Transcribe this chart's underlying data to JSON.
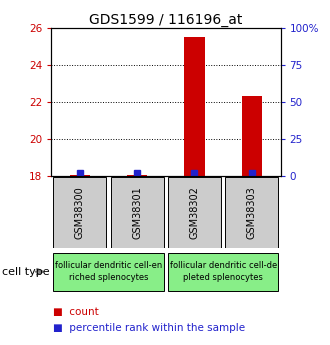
{
  "title": "GDS1599 / 116196_at",
  "samples": [
    "GSM38300",
    "GSM38301",
    "GSM38302",
    "GSM38303"
  ],
  "count_values": [
    18.05,
    18.05,
    25.5,
    22.3
  ],
  "percentile_values": [
    2,
    2,
    2,
    2
  ],
  "ylim_left": [
    18,
    26
  ],
  "ylim_right": [
    0,
    100
  ],
  "yticks_left": [
    18,
    20,
    22,
    24,
    26
  ],
  "ytick_labels_left": [
    "18",
    "20",
    "22",
    "24",
    "26"
  ],
  "yticks_right": [
    0,
    25,
    50,
    75,
    100
  ],
  "ytick_labels_right": [
    "0",
    "25",
    "50",
    "75",
    "100%"
  ],
  "bar_width": 0.35,
  "count_color": "#cc0000",
  "percentile_color": "#2222cc",
  "grid_color": "#000000",
  "cell_groups": [
    {
      "label": "follicular dendritic cell-en\nriched splenocytes",
      "start": 0,
      "end": 1
    },
    {
      "label": "follicular dendritic cell-de\npleted splenocytes",
      "start": 2,
      "end": 3
    }
  ],
  "cell_group_color": "#88ee88",
  "sample_box_color": "#cccccc",
  "legend_count_label": "count",
  "legend_percentile_label": "percentile rank within the sample",
  "left_axis_color": "#cc0000",
  "right_axis_color": "#2222cc",
  "title_fontsize": 10,
  "tick_fontsize": 7.5,
  "sample_fontsize": 7,
  "cell_fontsize": 6,
  "legend_fontsize": 7.5
}
